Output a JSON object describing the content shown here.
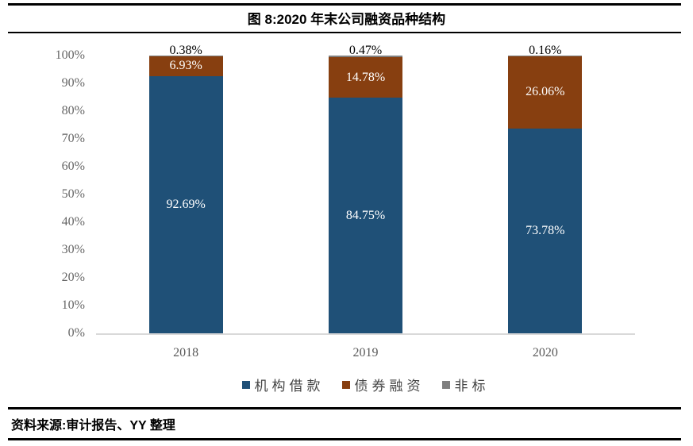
{
  "header": {
    "title": "图 8:2020 年末公司融资品种结构"
  },
  "footer": {
    "source": "资料来源:审计报告、YY 整理"
  },
  "colors": {
    "loan_blue": "#1F5077",
    "bond_brown": "#873F10",
    "nonstd_grey": "#7F7F7F",
    "axis_line": "#D9D9D9",
    "tick_text": "#666666",
    "rule_black": "#000000"
  },
  "chart_data": {
    "type": "bar",
    "subtype": "stacked-100",
    "title": "图 8:2020 年末公司融资品种结构",
    "categories": [
      "2018",
      "2019",
      "2020"
    ],
    "series": [
      {
        "name": "机构借款",
        "color": "#1F5077",
        "values": [
          92.69,
          84.75,
          73.78
        ],
        "label_color": "#ffffff",
        "label_position": "inside-center"
      },
      {
        "name": "债券融资",
        "color": "#873F10",
        "values": [
          6.93,
          14.78,
          26.06
        ],
        "label_color": "#ffffff",
        "label_position": "inside-center"
      },
      {
        "name": "非标",
        "color": "#7F7F7F",
        "values": [
          0.38,
          0.47,
          0.16
        ],
        "label_color": "#000000",
        "label_position": "outside-top"
      }
    ],
    "ylabel": "",
    "xlabel": "",
    "ylim": [
      0,
      100
    ],
    "yticks": [
      "0%",
      "10%",
      "20%",
      "30%",
      "40%",
      "50%",
      "60%",
      "70%",
      "80%",
      "90%",
      "100%"
    ],
    "grid": false,
    "legend_position": "bottom"
  }
}
